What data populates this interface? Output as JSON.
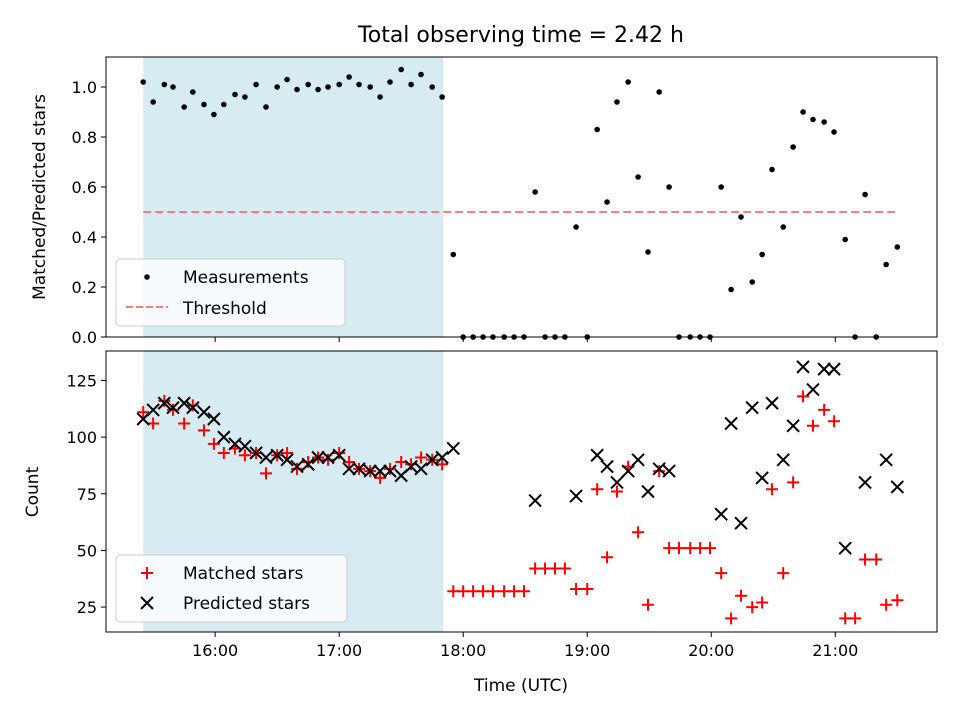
{
  "title": "Total observing time = 2.42 h",
  "xaxis": {
    "label": "Time (UTC)",
    "unit": "hours UTC",
    "range": [
      15.12,
      21.82
    ],
    "ticks": [
      {
        "value": 16,
        "label": "16:00"
      },
      {
        "value": 17,
        "label": "17:00"
      },
      {
        "value": 18,
        "label": "18:00"
      },
      {
        "value": 19,
        "label": "19:00"
      },
      {
        "value": 20,
        "label": "20:00"
      },
      {
        "value": 21,
        "label": "21:00"
      }
    ]
  },
  "colors": {
    "measurements": "#000000",
    "threshold": "#f08080",
    "matched": "#ff0000",
    "predicted": "#000000",
    "observing_span": "#add8e6"
  },
  "chart_data": [
    {
      "type": "scatter",
      "ylabel": "Matched/Predicted stars",
      "ylim": [
        0,
        1.12
      ],
      "yticks": [
        "0.0",
        "0.2",
        "0.4",
        "0.6",
        "0.8",
        "1.0"
      ],
      "shaded_span": [
        15.42,
        17.84
      ],
      "legend": "lower-left",
      "series": [
        {
          "name": "Measurements",
          "marker": "dot",
          "points": [
            [
              15.42,
              1.02
            ],
            [
              15.5,
              0.94
            ],
            [
              15.59,
              1.01
            ],
            [
              15.66,
              1.0
            ],
            [
              15.75,
              0.92
            ],
            [
              15.82,
              0.98
            ],
            [
              15.91,
              0.93
            ],
            [
              15.99,
              0.89
            ],
            [
              16.07,
              0.93
            ],
            [
              16.16,
              0.97
            ],
            [
              16.24,
              0.96
            ],
            [
              16.33,
              1.01
            ],
            [
              16.41,
              0.92
            ],
            [
              16.5,
              1.0
            ],
            [
              16.58,
              1.03
            ],
            [
              16.66,
              0.99
            ],
            [
              16.75,
              1.01
            ],
            [
              16.83,
              0.99
            ],
            [
              16.91,
              1.0
            ],
            [
              17.0,
              1.01
            ],
            [
              17.08,
              1.04
            ],
            [
              17.16,
              1.01
            ],
            [
              17.25,
              1.0
            ],
            [
              17.33,
              0.96
            ],
            [
              17.41,
              1.02
            ],
            [
              17.5,
              1.07
            ],
            [
              17.58,
              1.01
            ],
            [
              17.66,
              1.05
            ],
            [
              17.75,
              1.0
            ],
            [
              17.83,
              0.96
            ],
            [
              17.92,
              0.33
            ],
            [
              18.0,
              0.0
            ],
            [
              18.08,
              0.0
            ],
            [
              18.16,
              0.0
            ],
            [
              18.24,
              0.0
            ],
            [
              18.33,
              0.0
            ],
            [
              18.41,
              0.0
            ],
            [
              18.49,
              0.0
            ],
            [
              18.58,
              0.58
            ],
            [
              18.66,
              0.0
            ],
            [
              18.74,
              0.0
            ],
            [
              18.82,
              0.0
            ],
            [
              18.91,
              0.44
            ],
            [
              19.0,
              0.0
            ],
            [
              19.08,
              0.83
            ],
            [
              19.16,
              0.54
            ],
            [
              19.24,
              0.94
            ],
            [
              19.33,
              1.02
            ],
            [
              19.41,
              0.64
            ],
            [
              19.49,
              0.34
            ],
            [
              19.58,
              0.98
            ],
            [
              19.66,
              0.6
            ],
            [
              19.74,
              0.0
            ],
            [
              19.83,
              0.0
            ],
            [
              19.91,
              0.0
            ],
            [
              19.99,
              0.0
            ],
            [
              20.08,
              0.6
            ],
            [
              20.16,
              0.19
            ],
            [
              20.24,
              0.48
            ],
            [
              20.33,
              0.22
            ],
            [
              20.41,
              0.33
            ],
            [
              20.49,
              0.67
            ],
            [
              20.58,
              0.44
            ],
            [
              20.66,
              0.76
            ],
            [
              20.74,
              0.9
            ],
            [
              20.82,
              0.87
            ],
            [
              20.91,
              0.86
            ],
            [
              20.99,
              0.82
            ],
            [
              21.08,
              0.39
            ],
            [
              21.16,
              0.0
            ],
            [
              21.24,
              0.57
            ],
            [
              21.33,
              0.0
            ],
            [
              21.41,
              0.29
            ],
            [
              21.5,
              0.36
            ]
          ]
        },
        {
          "name": "Threshold",
          "style": "dashed-line",
          "points": [
            [
              15.42,
              0.5
            ],
            [
              21.5,
              0.5
            ]
          ]
        }
      ]
    },
    {
      "type": "scatter",
      "ylabel": "Count",
      "ylim": [
        14,
        138
      ],
      "yticks": [
        "25",
        "50",
        "75",
        "100",
        "125"
      ],
      "shaded_span": [
        15.42,
        17.84
      ],
      "legend": "lower-left",
      "series": [
        {
          "name": "Matched stars",
          "marker": "plus",
          "points": [
            [
              15.42,
              111
            ],
            [
              15.5,
              106
            ],
            [
              15.59,
              116
            ],
            [
              15.66,
              112
            ],
            [
              15.75,
              106
            ],
            [
              15.82,
              114
            ],
            [
              15.91,
              103
            ],
            [
              15.99,
              97
            ],
            [
              16.07,
              93
            ],
            [
              16.16,
              95
            ],
            [
              16.24,
              92
            ],
            [
              16.33,
              93
            ],
            [
              16.41,
              84
            ],
            [
              16.5,
              92
            ],
            [
              16.58,
              93
            ],
            [
              16.66,
              86
            ],
            [
              16.75,
              89
            ],
            [
              16.83,
              91
            ],
            [
              16.91,
              90
            ],
            [
              17.0,
              93
            ],
            [
              17.08,
              89
            ],
            [
              17.16,
              86
            ],
            [
              17.25,
              85
            ],
            [
              17.33,
              82
            ],
            [
              17.41,
              86
            ],
            [
              17.5,
              89
            ],
            [
              17.58,
              88
            ],
            [
              17.66,
              91
            ],
            [
              17.75,
              90
            ],
            [
              17.83,
              88
            ],
            [
              17.92,
              32
            ],
            [
              18.0,
              32
            ],
            [
              18.08,
              32
            ],
            [
              18.16,
              32
            ],
            [
              18.24,
              32
            ],
            [
              18.33,
              32
            ],
            [
              18.41,
              32
            ],
            [
              18.49,
              32
            ],
            [
              18.58,
              42
            ],
            [
              18.66,
              42
            ],
            [
              18.74,
              42
            ],
            [
              18.82,
              42
            ],
            [
              18.91,
              33
            ],
            [
              19.0,
              33
            ],
            [
              19.08,
              77
            ],
            [
              19.16,
              47
            ],
            [
              19.24,
              76
            ],
            [
              19.33,
              87
            ],
            [
              19.41,
              58
            ],
            [
              19.49,
              26
            ],
            [
              19.58,
              85
            ],
            [
              19.66,
              51
            ],
            [
              19.74,
              51
            ],
            [
              19.83,
              51
            ],
            [
              19.91,
              51
            ],
            [
              19.99,
              51
            ],
            [
              20.08,
              40
            ],
            [
              20.16,
              20
            ],
            [
              20.24,
              30
            ],
            [
              20.33,
              25
            ],
            [
              20.41,
              27
            ],
            [
              20.49,
              77
            ],
            [
              20.58,
              40
            ],
            [
              20.66,
              80
            ],
            [
              20.74,
              118
            ],
            [
              20.82,
              105
            ],
            [
              20.91,
              112
            ],
            [
              20.99,
              107
            ],
            [
              21.08,
              20
            ],
            [
              21.16,
              20
            ],
            [
              21.24,
              46
            ],
            [
              21.33,
              46
            ],
            [
              21.41,
              26
            ],
            [
              21.5,
              28
            ]
          ]
        },
        {
          "name": "Predicted stars",
          "marker": "x",
          "points": [
            [
              15.42,
              108
            ],
            [
              15.5,
              112
            ],
            [
              15.59,
              115
            ],
            [
              15.66,
              113
            ],
            [
              15.75,
              115
            ],
            [
              15.82,
              113
            ],
            [
              15.91,
              111
            ],
            [
              15.99,
              108
            ],
            [
              16.07,
              100
            ],
            [
              16.16,
              97
            ],
            [
              16.24,
              96
            ],
            [
              16.33,
              93
            ],
            [
              16.41,
              91
            ],
            [
              16.5,
              92
            ],
            [
              16.58,
              90
            ],
            [
              16.66,
              87
            ],
            [
              16.75,
              88
            ],
            [
              16.83,
              91
            ],
            [
              16.91,
              91
            ],
            [
              17.0,
              92
            ],
            [
              17.08,
              86
            ],
            [
              17.16,
              86
            ],
            [
              17.25,
              85
            ],
            [
              17.33,
              85
            ],
            [
              17.41,
              85
            ],
            [
              17.5,
              83
            ],
            [
              17.58,
              87
            ],
            [
              17.66,
              86
            ],
            [
              17.75,
              90
            ],
            [
              17.83,
              91
            ],
            [
              17.92,
              95
            ],
            [
              18.58,
              72
            ],
            [
              18.91,
              74
            ],
            [
              19.08,
              92
            ],
            [
              19.16,
              87
            ],
            [
              19.24,
              80
            ],
            [
              19.33,
              85
            ],
            [
              19.41,
              90
            ],
            [
              19.49,
              76
            ],
            [
              19.58,
              86
            ],
            [
              19.66,
              85
            ],
            [
              20.08,
              66
            ],
            [
              20.16,
              106
            ],
            [
              20.24,
              62
            ],
            [
              20.33,
              113
            ],
            [
              20.41,
              82
            ],
            [
              20.49,
              115
            ],
            [
              20.58,
              90
            ],
            [
              20.66,
              105
            ],
            [
              20.74,
              131
            ],
            [
              20.82,
              121
            ],
            [
              20.91,
              130
            ],
            [
              20.99,
              130
            ],
            [
              21.08,
              51
            ],
            [
              21.24,
              80
            ],
            [
              21.41,
              90
            ],
            [
              21.5,
              78
            ]
          ]
        }
      ]
    }
  ]
}
